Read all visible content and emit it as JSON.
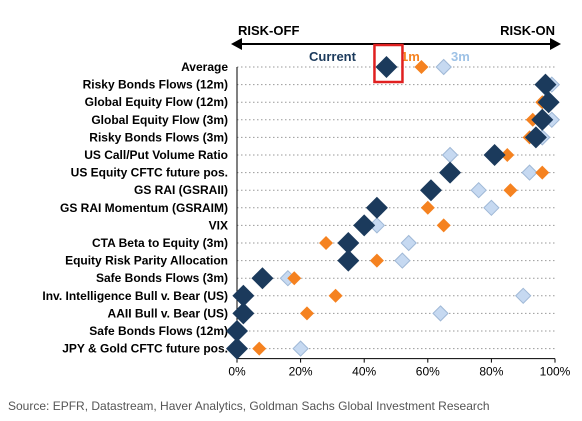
{
  "chart_data": {
    "type": "scatter",
    "title": "",
    "xlabel": "",
    "ylabel": "",
    "xlim": [
      0,
      100
    ],
    "x_ticks": [
      "0%",
      "20%",
      "40%",
      "60%",
      "80%",
      "100%"
    ],
    "x_tick_values": [
      0,
      20,
      40,
      60,
      80,
      100
    ],
    "header_left": "RISK-OFF",
    "header_right": "RISK-ON",
    "legend": {
      "current": "Current",
      "one_month": "1m",
      "three_month": "3m"
    },
    "categories": [
      "Average",
      "Risky Bonds Flows (12m)",
      "Global Equity Flow (12m)",
      "Global Equity Flow (3m)",
      "Risky Bonds Flows (3m)",
      "US Call/Put Volume Ratio",
      "US Equity CFTC future pos.",
      "GS RAI (GSRAII)",
      "GS RAI Momentum (GSRAIM)",
      "VIX",
      "CTA Beta to Equity (3m)",
      "Equity Risk Parity Allocation",
      "Safe Bonds Flows (3m)",
      "Inv. Intelligence Bull v. Bear (US)",
      "AAII Bull v. Bear (US)",
      "Safe Bonds Flows (12m)",
      "JPY & Gold CFTC future pos."
    ],
    "series": [
      {
        "name": "3m",
        "color": "#c6d9f1",
        "values": [
          65,
          99,
          97,
          99,
          96,
          67,
          92,
          76,
          80,
          44,
          54,
          52,
          16,
          90,
          64,
          0,
          20
        ]
      },
      {
        "name": "1m",
        "color": "#f58220",
        "values": [
          58,
          97,
          96,
          93,
          92,
          85,
          96,
          86,
          60,
          65,
          28,
          44,
          18,
          31,
          22,
          1,
          7
        ]
      },
      {
        "name": "Current",
        "color": "#1b3a5c",
        "values": [
          47,
          97,
          98,
          96,
          94,
          81,
          67,
          61,
          44,
          40,
          35,
          35,
          8,
          2,
          2,
          0,
          0
        ]
      }
    ],
    "highlight": {
      "category": "Average",
      "series": "Current",
      "color": "#e02020"
    },
    "source": "Source: EPFR, Datastream, Haver Analytics, Goldman Sachs Global Investment Research"
  }
}
